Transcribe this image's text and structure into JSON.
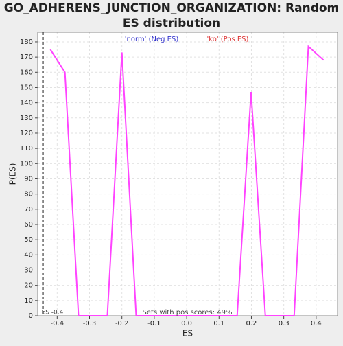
{
  "chart_data": {
    "type": "line",
    "title": "GO_ADHERENS_JUNCTION_ORGANIZATION: Random ES distribution",
    "x_label": "ES",
    "y_label": "P(ES)",
    "legend_neg": "'norm' (Neg ES)",
    "legend_pos": "'ko' (Pos ES)",
    "annotation": "Sets with pos scores: 49%",
    "observed_es": {
      "value": -0.444,
      "label": "ES -0.4"
    },
    "x": [
      -0.421,
      -0.376,
      -0.334,
      -0.245,
      -0.2,
      -0.156,
      0.156,
      0.199,
      0.243,
      0.332,
      0.376,
      0.423
    ],
    "series": [
      {
        "name": "P(ES)",
        "color": "#ff44ff",
        "values": [
          175,
          160,
          0,
          0,
          173,
          0,
          0,
          147,
          0,
          0,
          177,
          168
        ]
      }
    ],
    "xlim": [
      -0.46,
      0.466
    ],
    "xticks": [
      -0.4,
      -0.3,
      -0.2,
      -0.1,
      {
        "value": 0,
        "label": "0.0"
      },
      0.1,
      0.2,
      0.3,
      0.4
    ],
    "ylim": [
      0,
      186.3
    ],
    "yticks": [
      0,
      10,
      20,
      30,
      40,
      50,
      60,
      70,
      80,
      90,
      100,
      110,
      120,
      130,
      140,
      150,
      160,
      170,
      180
    ],
    "grid": true
  }
}
